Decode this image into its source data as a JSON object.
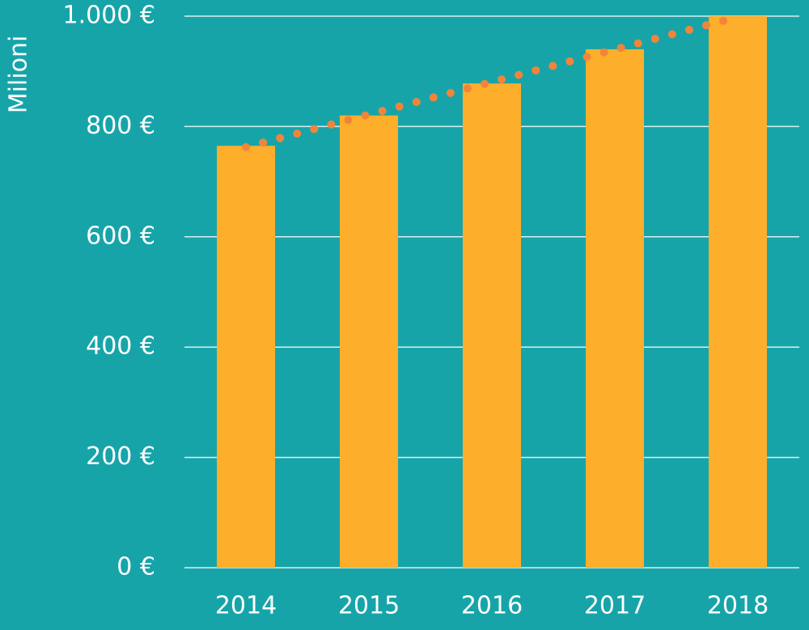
{
  "chart_data": {
    "type": "bar",
    "y_label": "Milioni",
    "categories": [
      "2014",
      "2015",
      "2016",
      "2017",
      "2018"
    ],
    "values": [
      765,
      820,
      878,
      940,
      1000
    ],
    "color": "#fdae2b",
    "background": "#17a4a9",
    "trendline": {
      "type": "linear",
      "color": "#f0853a",
      "style": "dotted"
    },
    "ylim": [
      0,
      1000
    ],
    "yticks": [
      {
        "value": 0,
        "label": "0 €"
      },
      {
        "value": 200,
        "label": "200 €"
      },
      {
        "value": 400,
        "label": "400 €"
      },
      {
        "value": 600,
        "label": "600 €"
      },
      {
        "value": 800,
        "label": "800 €"
      },
      {
        "value": 1000,
        "label": "1.000 €"
      }
    ],
    "grid": true
  }
}
